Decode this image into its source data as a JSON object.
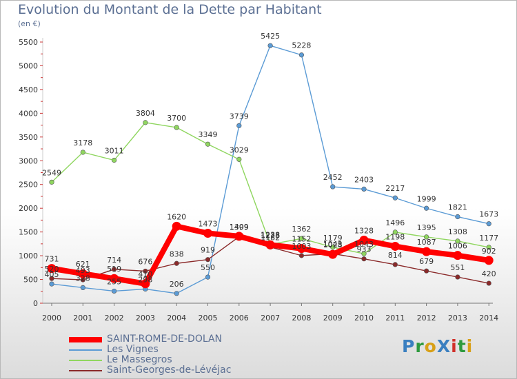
{
  "title": "Evolution du Montant de la Dette par Habitant",
  "subtitle": "(en €)",
  "logo": {
    "text": "ProXiti",
    "colors": [
      "#3a7fc0",
      "#2e9a3e",
      "#d8a018",
      "#3a7fc0",
      "#d0302a",
      "#2e9a3e",
      "#d8a018"
    ]
  },
  "chart_data": {
    "type": "line",
    "title": "Evolution du Montant de la Dette par Habitant",
    "ylabel": "(en €)",
    "x": [
      "2000",
      "2001",
      "2002",
      "2003",
      "2004",
      "2005",
      "2006",
      "2007",
      "2008",
      "2009",
      "2010",
      "2011",
      "2012",
      "2013",
      "2014"
    ],
    "ylim": [
      0,
      5500
    ],
    "yticks": [
      0,
      500,
      1000,
      1500,
      2000,
      2500,
      3000,
      3500,
      4000,
      4500,
      5000,
      5500
    ],
    "grid": false,
    "legend": "bottom-left",
    "series": [
      {
        "name": "SAINT-ROME-DE-DOLAN",
        "color": "#ff0000",
        "values": [
          731,
          621,
          519,
          410,
          1620,
          1473,
          1409,
          1228,
          1152,
          1028,
          1328,
          1198,
          1087,
          1006,
          902
        ]
      },
      {
        "name": "Les Vignes",
        "color": "#5b9bd5",
        "values": [
          405,
          328,
          255,
          298,
          206,
          550,
          3739,
          5425,
          5228,
          2452,
          2403,
          2217,
          1999,
          1821,
          1673
        ]
      },
      {
        "name": "Le Massegros",
        "color": "#8fd65f",
        "values": [
          2549,
          3178,
          3011,
          3804,
          3700,
          3349,
          3029,
          1238,
          1362,
          1179,
          1043,
          1496,
          1395,
          1308,
          1177
        ]
      },
      {
        "name": "Saint-Georges-de-Lévéjac",
        "color": "#8b2a2a",
        "values": [
          520,
          493,
          714,
          676,
          838,
          919,
          1399,
          1182,
          1003,
          1043,
          933,
          814,
          679,
          551,
          420
        ]
      }
    ]
  }
}
